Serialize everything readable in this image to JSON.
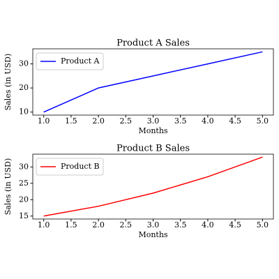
{
  "chart_data": [
    {
      "type": "line",
      "title": "Product A Sales",
      "x_label": "Months",
      "y_label": "Sales (in USD)",
      "x": [
        1,
        2,
        3,
        4,
        5
      ],
      "series": [
        {
          "name": "Product A",
          "color": "#0000ff",
          "values": [
            10,
            20,
            25,
            30,
            35
          ]
        }
      ],
      "xlim": [
        0.8,
        5.2
      ],
      "xticks": [
        {
          "value": 1,
          "label": "1.0"
        },
        {
          "value": 1.5,
          "label": "1.5"
        },
        {
          "value": 2,
          "label": "2.0"
        },
        {
          "value": 2.5,
          "label": "2.5"
        },
        {
          "value": 3,
          "label": "3.0"
        },
        {
          "value": 3.5,
          "label": "3.5"
        },
        {
          "value": 4,
          "label": "4.0"
        },
        {
          "value": 4.5,
          "label": "4.5"
        },
        {
          "value": 5,
          "label": "5.0"
        }
      ],
      "ylim": [
        8.75,
        36.25
      ],
      "yticks": [
        10,
        20,
        30
      ],
      "legend": "upper left"
    },
    {
      "type": "line",
      "title": "Product B Sales",
      "x_label": "Months",
      "y_label": "Sales (in USD)",
      "x": [
        1,
        2,
        3,
        4,
        5
      ],
      "series": [
        {
          "name": "Product B",
          "color": "#ff0000",
          "values": [
            15,
            18,
            22,
            27,
            33
          ]
        }
      ],
      "xlim": [
        0.8,
        5.2
      ],
      "xticks": [
        {
          "value": 1,
          "label": "1.0"
        },
        {
          "value": 1.5,
          "label": "1.5"
        },
        {
          "value": 2,
          "label": "2.0"
        },
        {
          "value": 2.5,
          "label": "2.5"
        },
        {
          "value": 3,
          "label": "3.0"
        },
        {
          "value": 3.5,
          "label": "3.5"
        },
        {
          "value": 4,
          "label": "4.0"
        },
        {
          "value": 4.5,
          "label": "4.5"
        },
        {
          "value": 5,
          "label": "5.0"
        }
      ],
      "ylim": [
        14.1,
        33.9
      ],
      "yticks": [
        15,
        20,
        25,
        30
      ],
      "legend": "upper left"
    }
  ]
}
